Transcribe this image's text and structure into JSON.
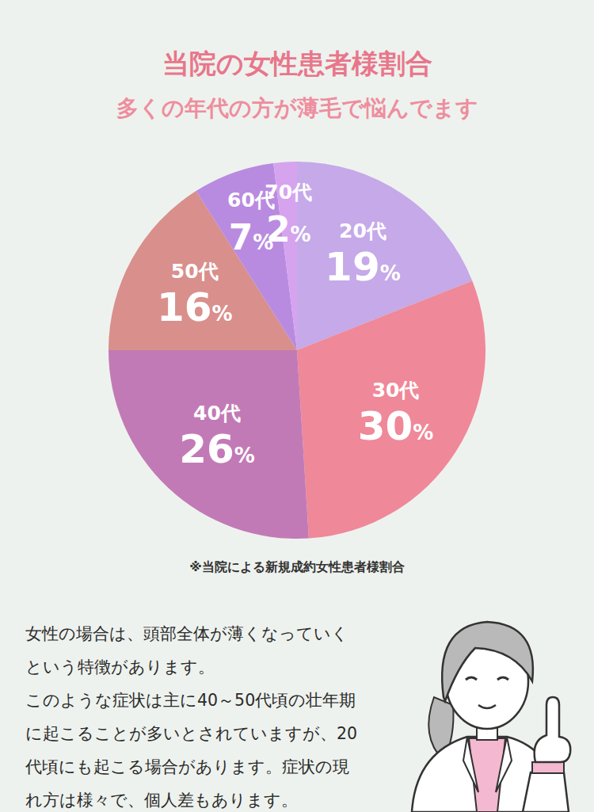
{
  "chart_data": {
    "type": "pie",
    "title": "当院の女性患者様割合",
    "subtitle": "多くの年代の方が薄毛で悩んでます",
    "categories": [
      "20代",
      "30代",
      "40代",
      "50代",
      "60代",
      "70代"
    ],
    "values": [
      19,
      30,
      26,
      16,
      7,
      2
    ],
    "value_labels": [
      "19%",
      "30%",
      "26%",
      "16%",
      "7%",
      "2%"
    ],
    "colors": [
      "#c5a9e8",
      "#ef8898",
      "#c27ab6",
      "#d98f8c",
      "#b98be0",
      "#d6a3ef"
    ],
    "data_labels": true,
    "annotations": [
      "※当院による新規成約女性患者様割合"
    ]
  },
  "body": {
    "lines": [
      "女性の場合は、頭部全体が薄くなっていく",
      "という特徴があります。",
      "このような症状は主に40～50代頃の壮年期",
      "に起こることが多いとされていますが、20",
      "代頃にも起こる場合があります。症状の現",
      "れ方は様々で、個人差もあります。"
    ]
  }
}
